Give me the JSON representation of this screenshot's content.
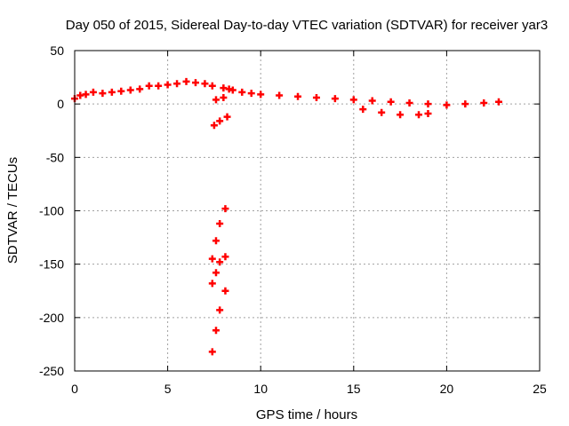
{
  "chart_data": {
    "type": "scatter",
    "title": "Day 050 of 2015, Sidereal Day-to-day VTEC variation (SDTVAR) for receiver yar3",
    "xlabel": "GPS time / hours",
    "ylabel": "SDTVAR / TECUs",
    "xlim": [
      0,
      25
    ],
    "ylim": [
      -250,
      50
    ],
    "xticks": [
      0,
      5,
      10,
      15,
      20,
      25
    ],
    "yticks": [
      -250,
      -200,
      -150,
      -100,
      -50,
      0,
      50
    ],
    "grid": true,
    "series": [
      {
        "name": "SDTVAR",
        "color": "#ff0000",
        "x": [
          0.0,
          0.3,
          0.6,
          1.0,
          1.5,
          2.0,
          2.5,
          3.0,
          3.5,
          4.0,
          4.5,
          5.0,
          5.5,
          6.0,
          6.5,
          7.0,
          7.4,
          7.6,
          8.0,
          8.3,
          8.5,
          9.0,
          9.5,
          10.0,
          11.0,
          12.0,
          13.0,
          14.0,
          15.0,
          16.0,
          17.0,
          18.0,
          19.0,
          20.0,
          21.0,
          22.0,
          22.8,
          15.5,
          16.5,
          17.5,
          18.5,
          19.0,
          7.5,
          7.8,
          8.2,
          8.0,
          7.4,
          7.6,
          7.8,
          8.1,
          7.4,
          7.6,
          7.8,
          8.1,
          7.4,
          7.6,
          7.8,
          8.1
        ],
        "y": [
          5,
          8,
          9,
          11,
          10,
          11,
          12,
          13,
          14,
          17,
          17,
          18,
          19,
          21,
          20,
          19,
          17,
          4,
          15,
          14,
          13,
          11,
          10,
          9,
          8,
          7,
          6,
          5,
          4,
          3,
          2,
          1,
          0,
          -1,
          0,
          1,
          2,
          -5,
          -8,
          -10,
          -10,
          -9,
          -20,
          -16,
          -12,
          6,
          -145,
          -128,
          -112,
          -98,
          -168,
          -158,
          -148,
          -143,
          -232,
          -212,
          -193,
          -175
        ]
      }
    ]
  }
}
